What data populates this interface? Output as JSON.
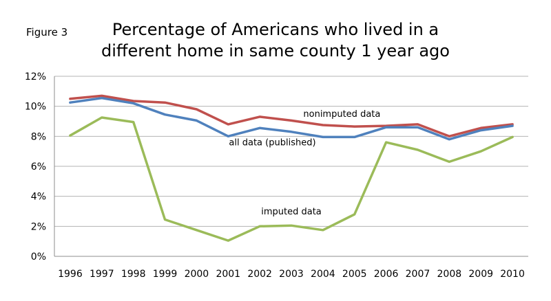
{
  "figure_label": "Figure 3",
  "chart_data": {
    "type": "line",
    "title_line1": "Percentage of Americans who lived in a",
    "title_line2": "different home in same county 1 year ago",
    "x": [
      "1996",
      "1997",
      "1998",
      "1999",
      "2000",
      "2001",
      "2002",
      "2003",
      "2004",
      "2005",
      "2006",
      "2007",
      "2008",
      "2009",
      "2010"
    ],
    "y_ticks": [
      "0%",
      "2%",
      "4%",
      "6%",
      "8%",
      "10%",
      "12%"
    ],
    "ylim": [
      0,
      12
    ],
    "grid": true,
    "series": [
      {
        "key": "nonimputed",
        "color": "#c0504d",
        "values": [
          10.5,
          10.7,
          10.35,
          10.25,
          9.8,
          8.8,
          9.3,
          9.05,
          8.75,
          8.65,
          8.7,
          8.8,
          8.0,
          8.55,
          8.8
        ]
      },
      {
        "key": "all",
        "color": "#4f81bd",
        "values": [
          10.25,
          10.55,
          10.2,
          9.45,
          9.05,
          8.0,
          8.55,
          8.3,
          7.95,
          7.95,
          8.6,
          8.6,
          7.8,
          8.4,
          8.7
        ]
      },
      {
        "key": "imputed",
        "color": "#9bbb59",
        "values": [
          8.05,
          9.25,
          8.95,
          2.45,
          1.75,
          1.05,
          2.0,
          2.05,
          1.75,
          2.8,
          7.6,
          7.1,
          6.3,
          7.0,
          7.95
        ]
      }
    ],
    "annotations": [
      {
        "text": "nonimputed data",
        "x": 9.1,
        "y": 9.3
      },
      {
        "text": "all data (published)",
        "x": 6.9,
        "y": 7.4
      },
      {
        "text": "imputed data",
        "x": 7.5,
        "y": 2.8
      }
    ]
  }
}
